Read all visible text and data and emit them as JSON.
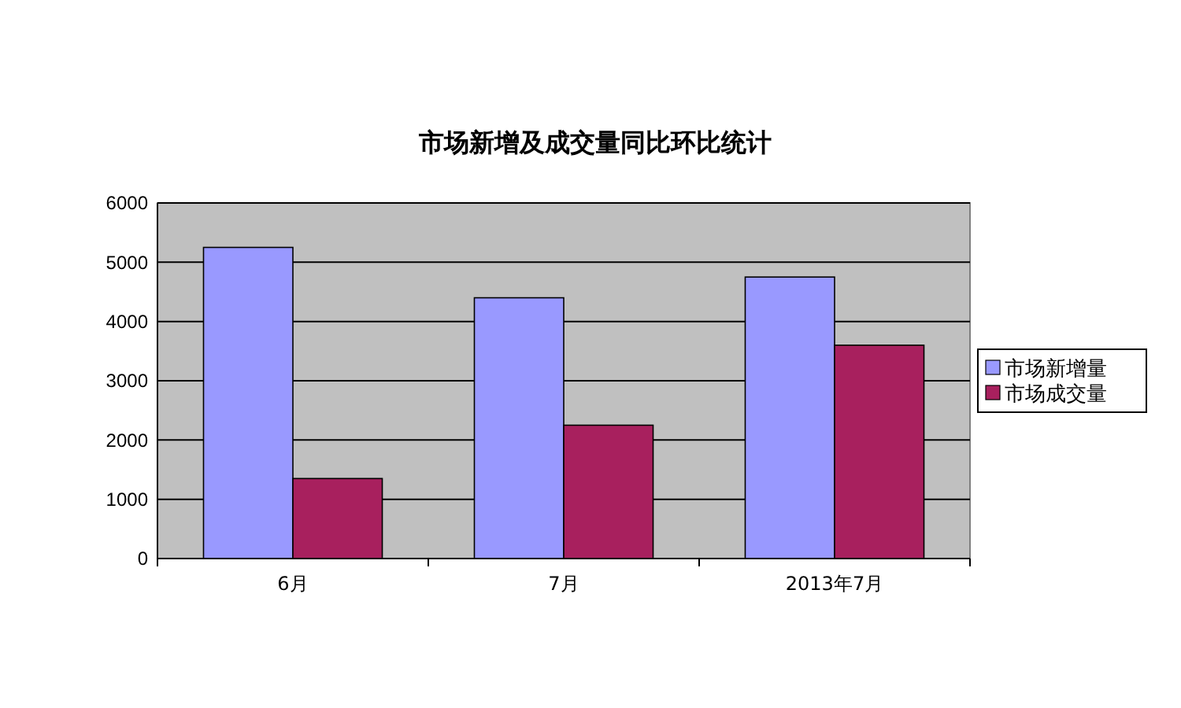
{
  "chart_data": {
    "type": "bar",
    "title": "市场新增及成交量同比环比统计",
    "categories": [
      "6月",
      "7月",
      "2013年7月"
    ],
    "series": [
      {
        "name": "市场新增量",
        "color": "#9999ff",
        "values": [
          5250,
          4400,
          4750
        ]
      },
      {
        "name": "市场成交量",
        "color": "#a8205e",
        "values": [
          1350,
          2250,
          3600
        ]
      }
    ],
    "ylim": [
      0,
      6000
    ],
    "yticks": [
      0,
      1000,
      2000,
      3000,
      4000,
      5000,
      6000
    ],
    "grid": "y",
    "legend": "right"
  }
}
